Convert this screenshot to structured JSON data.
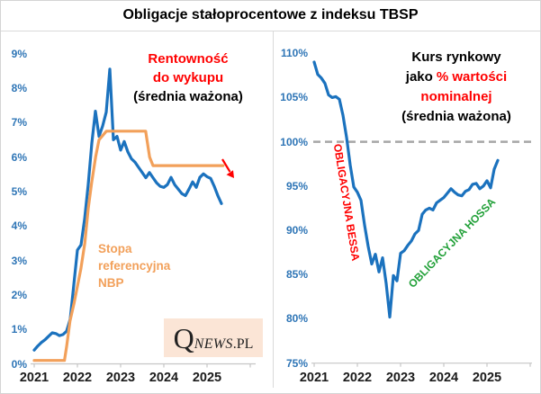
{
  "title": "Obligacje stałoprocentowe z indeksu TBSP",
  "logo": {
    "q": "Q",
    "news": "NEWS",
    "pl": ".PL"
  },
  "colors": {
    "line_blue": "#1b72be",
    "line_orange": "#f2a05a",
    "label_blue": "#2e75b6",
    "red": "#ff0000",
    "green": "#21a038",
    "dash_gray": "#a6a6a6",
    "axis_gray": "#c6c6c6",
    "divider_gray": "#d9d9d9",
    "logo_bg": "#fbe5d6"
  },
  "chart_data": [
    {
      "type": "line",
      "panel": "left",
      "ylim": [
        0,
        9
      ],
      "y_tick_labels": [
        "9%",
        "8%",
        "7%",
        "6%",
        "5%",
        "4%",
        "3%",
        "2%",
        "1%",
        "0%"
      ],
      "xlim": [
        2021,
        2026.125
      ],
      "x_tick_years": [
        2021,
        2022,
        2023,
        2024,
        2025,
        2026
      ],
      "x_tick_labels": [
        "2021",
        "2022",
        "2023",
        "2024",
        "2025"
      ],
      "grid": false,
      "annotations": {
        "yield_label_lines_red": [
          "Rentowność",
          "do wykupu"
        ],
        "yield_label_line_black": "(średnia ważona)",
        "rate_label_lines": [
          "Stopa",
          "referencyjna",
          "NBP"
        ],
        "trend_arrow": "↘"
      },
      "series": [
        {
          "id": "ytm",
          "name": "Rentowność do wykupu (średnia ważona)",
          "color_key": "line_blue",
          "unit": "%",
          "x_start": 2021.0,
          "x_step": 0.083333,
          "values": [
            0.4,
            0.52,
            0.62,
            0.7,
            0.8,
            0.9,
            0.88,
            0.82,
            0.85,
            0.95,
            1.3,
            2.3,
            3.3,
            3.45,
            4.2,
            5.2,
            6.4,
            7.33,
            6.6,
            6.9,
            7.3,
            8.55,
            6.5,
            6.6,
            6.2,
            6.45,
            6.15,
            5.95,
            5.85,
            5.7,
            5.55,
            5.4,
            5.55,
            5.4,
            5.25,
            5.15,
            5.12,
            5.2,
            5.41,
            5.2,
            5.07,
            4.94,
            4.88,
            5.07,
            5.28,
            5.12,
            5.41,
            5.51,
            5.43,
            5.38,
            5.15,
            4.88,
            4.65
          ]
        },
        {
          "id": "nbp_rate",
          "name": "Stopa referencyjna NBP",
          "color_key": "line_orange",
          "unit": "%",
          "x": [
            2021.0,
            2021.7,
            2021.75,
            2021.83,
            2021.92,
            2022.0,
            2022.08,
            2022.17,
            2022.25,
            2022.33,
            2022.42,
            2022.5,
            2022.67,
            2023.58,
            2023.67,
            2023.75,
            2025.37
          ],
          "values": [
            0.1,
            0.1,
            0.5,
            1.25,
            1.75,
            2.25,
            2.75,
            3.5,
            4.5,
            5.25,
            6.0,
            6.5,
            6.75,
            6.75,
            6.0,
            5.75,
            5.75
          ]
        }
      ]
    },
    {
      "type": "line",
      "panel": "right",
      "ylim": [
        75,
        110
      ],
      "y_tick_labels": [
        "110%",
        "105%",
        "100%",
        "95%",
        "90%",
        "85%",
        "80%",
        "75%"
      ],
      "xlim": [
        2021,
        2026
      ],
      "x_tick_years": [
        2021,
        2022,
        2023,
        2024,
        2025,
        2026
      ],
      "x_tick_labels": [
        "2021",
        "2022",
        "2023",
        "2024",
        "2025"
      ],
      "grid": false,
      "reference_line": {
        "value": 100,
        "style": "dashed"
      },
      "annotations": {
        "price_label_line1": "Kurs rynkowy",
        "price_label_line2_black": "jako",
        "price_label_line2_red": "% wartości",
        "price_label_line3_red": "nominalnej",
        "price_label_line4_black": "(średnia ważona)",
        "bear_market_label": "OBLIGACYJNA BESSA",
        "bull_market_label": "OBLIGACYJNA HOSSA"
      },
      "series": [
        {
          "id": "market_price",
          "name": "Kurs rynkowy jako % wartości nominalnej (średnia ważona)",
          "color_key": "line_blue",
          "unit": "% nominału",
          "x_start": 2021.0,
          "x_step": 0.083333,
          "values": [
            109.0,
            107.6,
            107.2,
            106.6,
            105.3,
            105.0,
            105.1,
            104.8,
            103.0,
            100.5,
            97.4,
            94.9,
            94.3,
            93.4,
            90.6,
            88.2,
            86.2,
            87.3,
            85.3,
            86.9,
            84.0,
            80.2,
            84.9,
            84.3,
            87.4,
            87.7,
            88.3,
            88.8,
            89.6,
            90.0,
            91.8,
            92.3,
            92.5,
            92.3,
            93.1,
            93.4,
            93.7,
            94.2,
            94.7,
            94.3,
            94.0,
            93.9,
            94.4,
            94.6,
            95.2,
            95.3,
            94.7,
            95.0,
            95.6,
            94.8,
            96.9,
            97.9
          ]
        }
      ]
    }
  ]
}
